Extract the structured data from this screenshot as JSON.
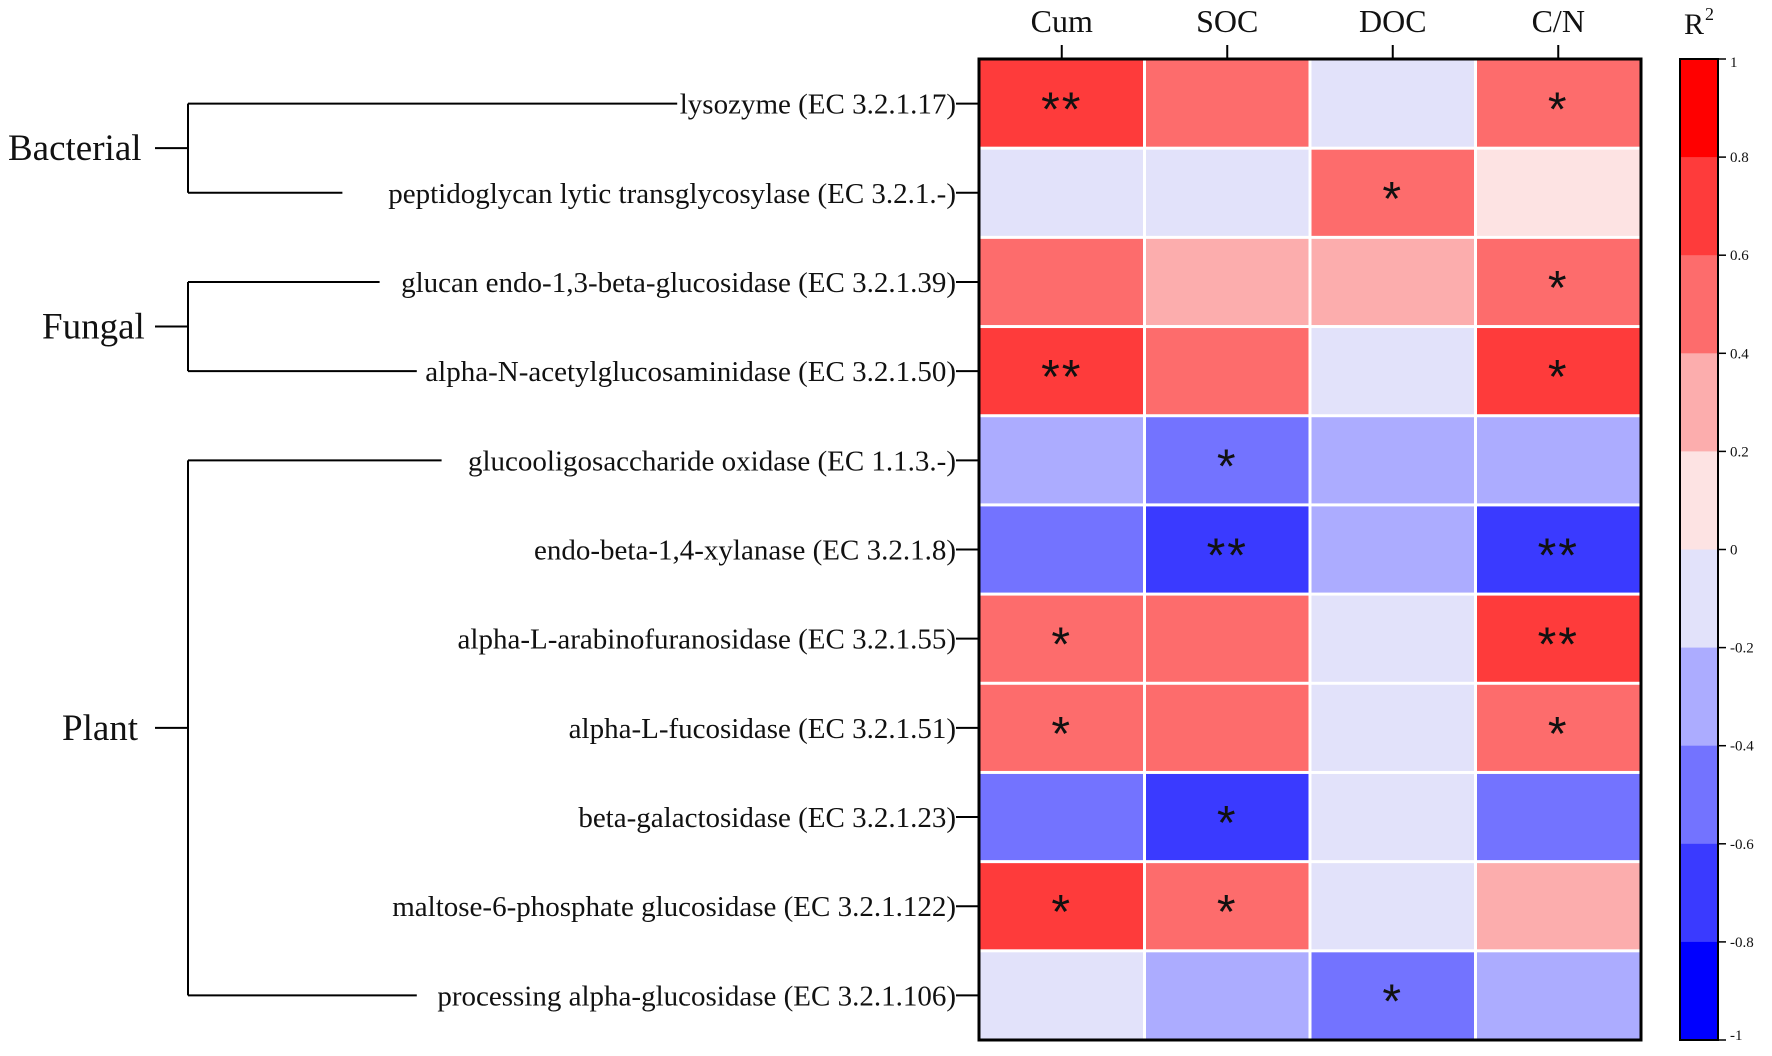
{
  "chart_data": {
    "type": "heatmap",
    "title": "",
    "columns": [
      "Cum",
      "SOC",
      "DOC",
      "C/N"
    ],
    "rows": [
      {
        "label": "lysozyme (EC 3.2.1.17)",
        "group": "Bacterial",
        "values": [
          0.7,
          0.5,
          -0.1,
          0.5
        ],
        "sig": [
          "**",
          "",
          "",
          "*"
        ]
      },
      {
        "label": "peptidoglycan lytic transglycosylase (EC 3.2.1.-)",
        "group": "Bacterial",
        "values": [
          -0.1,
          -0.1,
          0.5,
          0.1
        ],
        "sig": [
          "",
          "",
          "*",
          ""
        ]
      },
      {
        "label": "glucan endo-1,3-beta-glucosidase (EC 3.2.1.39)",
        "group": "Fungal",
        "values": [
          0.5,
          0.3,
          0.3,
          0.5
        ],
        "sig": [
          "",
          "",
          "",
          "*"
        ]
      },
      {
        "label": "alpha-N-acetylglucosaminidase (EC 3.2.1.50)",
        "group": "Fungal",
        "values": [
          0.7,
          0.5,
          -0.1,
          0.7
        ],
        "sig": [
          "**",
          "",
          "",
          "*"
        ]
      },
      {
        "label": "glucooligosaccharide oxidase (EC 1.1.3.-)",
        "group": "Plant",
        "values": [
          -0.3,
          -0.5,
          -0.3,
          -0.3
        ],
        "sig": [
          "",
          "*",
          "",
          ""
        ]
      },
      {
        "label": "endo-beta-1,4-xylanase (EC 3.2.1.8)",
        "group": "Plant",
        "values": [
          -0.5,
          -0.7,
          -0.3,
          -0.7
        ],
        "sig": [
          "",
          "**",
          "",
          "**"
        ]
      },
      {
        "label": "alpha-L-arabinofuranosidase (EC 3.2.1.55)",
        "group": "Plant",
        "values": [
          0.5,
          0.5,
          -0.1,
          0.7
        ],
        "sig": [
          "*",
          "",
          "",
          "**"
        ]
      },
      {
        "label": "alpha-L-fucosidase (EC 3.2.1.51)",
        "group": "Plant",
        "values": [
          0.5,
          0.5,
          -0.1,
          0.5
        ],
        "sig": [
          "*",
          "",
          "",
          "*"
        ]
      },
      {
        "label": "beta-galactosidase (EC 3.2.1.23)",
        "group": "Plant",
        "values": [
          -0.5,
          -0.7,
          -0.1,
          -0.5
        ],
        "sig": [
          "",
          "*",
          "",
          ""
        ]
      },
      {
        "label": "maltose-6-phosphate glucosidase (EC 3.2.1.122)",
        "group": "Plant",
        "values": [
          0.7,
          0.5,
          -0.1,
          0.3
        ],
        "sig": [
          "*",
          "*",
          "",
          ""
        ]
      },
      {
        "label": "processing alpha-glucosidase (EC 3.2.1.106)",
        "group": "Plant",
        "values": [
          -0.1,
          -0.3,
          -0.5,
          -0.3
        ],
        "sig": [
          "",
          "",
          "*",
          ""
        ]
      }
    ],
    "groups": [
      {
        "name": "Bacterial",
        "rows": [
          0,
          1
        ]
      },
      {
        "name": "Fungal",
        "rows": [
          2,
          3
        ]
      },
      {
        "name": "Plant",
        "rows": [
          4,
          10
        ]
      }
    ],
    "colorbar": {
      "title": "R",
      "title_superscript": "2",
      "range": [
        -1,
        1
      ],
      "ticks": [
        "-1",
        "-0.8",
        "-0.6",
        "-0.4",
        "-0.2",
        "0",
        "0.2",
        "0.4",
        "0.6",
        "0.8",
        "1"
      ],
      "bins": [
        {
          "from": -1.0,
          "to": -0.8,
          "color": "#0000ff"
        },
        {
          "from": -0.8,
          "to": -0.6,
          "color": "#3a3aff"
        },
        {
          "from": -0.6,
          "to": -0.4,
          "color": "#7373ff"
        },
        {
          "from": -0.4,
          "to": -0.2,
          "color": "#acacff"
        },
        {
          "from": -0.2,
          "to": 0.0,
          "color": "#e2e2fa"
        },
        {
          "from": 0.0,
          "to": 0.2,
          "color": "#fde3e3"
        },
        {
          "from": 0.2,
          "to": 0.4,
          "color": "#fcadad"
        },
        {
          "from": 0.4,
          "to": 0.6,
          "color": "#fd6c6c"
        },
        {
          "from": 0.6,
          "to": 0.8,
          "color": "#fe3b3b"
        },
        {
          "from": 0.8,
          "to": 1.0,
          "color": "#ff0000"
        }
      ]
    }
  }
}
